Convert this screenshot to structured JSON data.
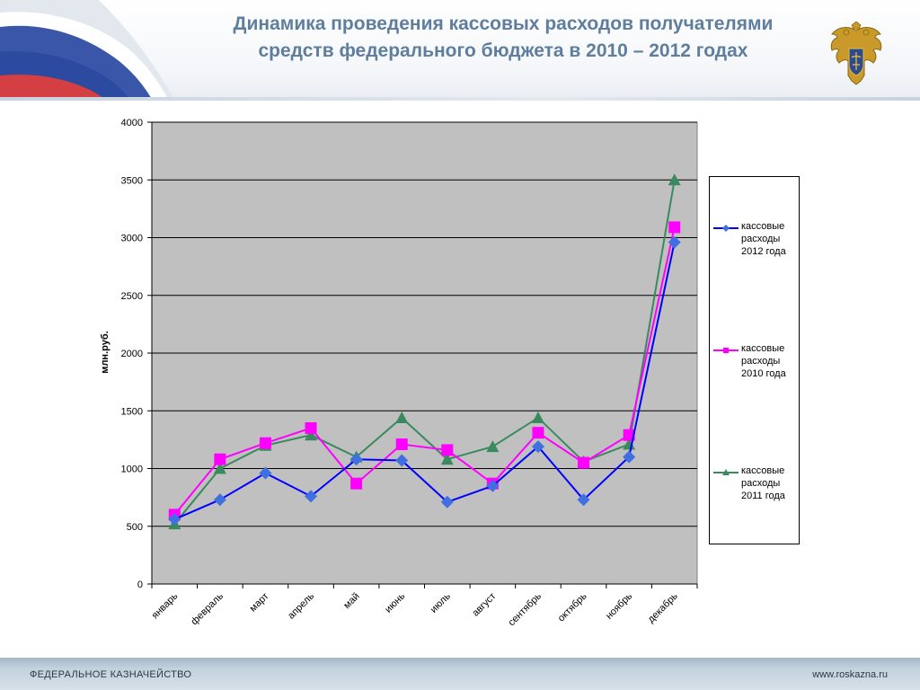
{
  "header": {
    "title_line1": "Динамика проведения кассовых расходов получателями",
    "title_line2": "средств федерального бюджета в 2010 – 2012 годах"
  },
  "footer": {
    "left": "ФЕДЕРАЛЬНОЕ КАЗНАЧЕЙСТВО",
    "right": "www.roskazna.ru"
  },
  "colors": {
    "title": "#5f7e9e",
    "plot_bg": "#c0c0c0",
    "series_2012": "#0000ff",
    "series_2012_marker": "#3f6fe0",
    "series_2010": "#ff00ff",
    "series_2011": "#3a8a5e"
  },
  "chart_data": {
    "type": "line",
    "ylabel": "млн.руб.",
    "ylim": [
      0,
      4000
    ],
    "yticks": [
      0,
      500,
      1000,
      1500,
      2000,
      2500,
      3000,
      3500,
      4000
    ],
    "grid": true,
    "legend_position": "right",
    "categories": [
      "январь",
      "февраль",
      "март",
      "апрель",
      "май",
      "июнь",
      "июль",
      "август",
      "сентябрь",
      "октябрь",
      "ноябрь",
      "декабрь"
    ],
    "series": [
      {
        "name": "кассовые расходы 2012 года",
        "marker": "diamond",
        "values": [
          560,
          730,
          960,
          760,
          1080,
          1070,
          710,
          850,
          1190,
          730,
          1100,
          2960
        ]
      },
      {
        "name": "кассовые расходы 2010 года",
        "marker": "square",
        "values": [
          600,
          1080,
          1220,
          1350,
          870,
          1210,
          1160,
          870,
          1310,
          1050,
          1290,
          3090
        ]
      },
      {
        "name": "кассовые расходы 2011 года",
        "marker": "triangle",
        "values": [
          520,
          1000,
          1200,
          1290,
          1100,
          1440,
          1080,
          1190,
          1440,
          1060,
          1210,
          3500
        ]
      }
    ]
  }
}
